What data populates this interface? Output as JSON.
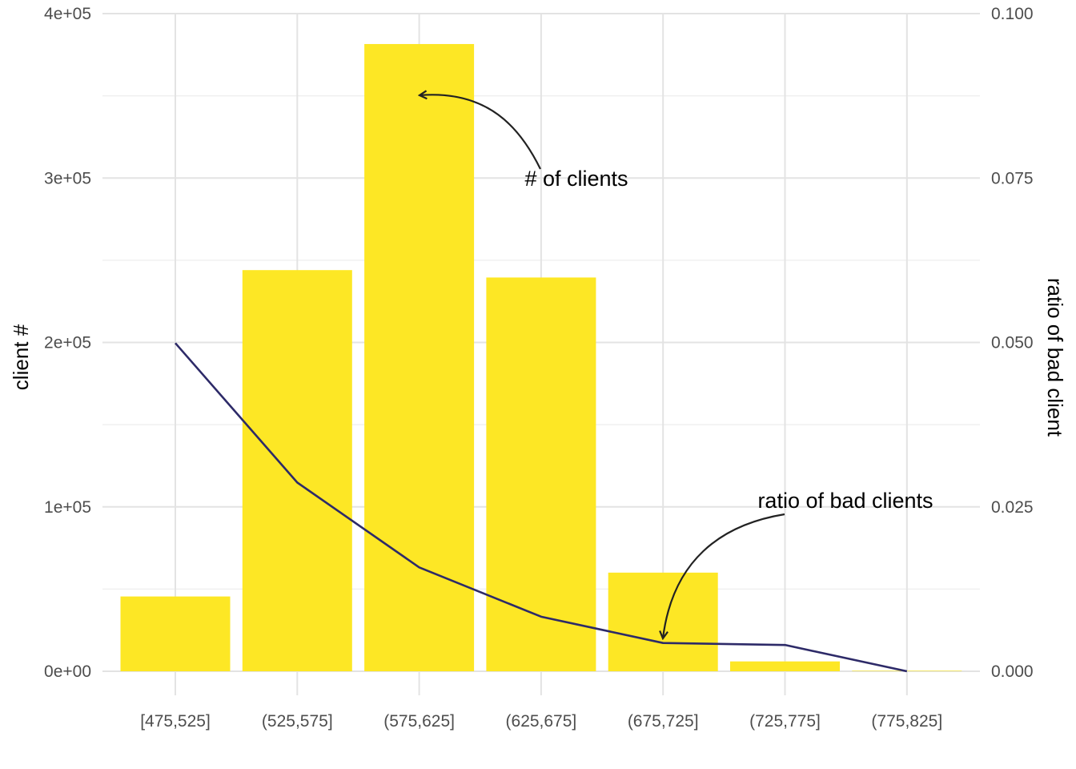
{
  "chart_data": {
    "type": "bar",
    "categories": [
      "[475,525]",
      "(525,575]",
      "(575,625]",
      "(625,675]",
      "(675,725]",
      "(725,775]",
      "(775,825]"
    ],
    "series": [
      {
        "values": [
          45500,
          244000,
          381500,
          239500,
          60000,
          6000,
          300
        ],
        "color": "#FDE725",
        "axis": "left"
      },
      {
        "type": "line",
        "values": [
          0.0499,
          0.0287,
          0.0158,
          0.0083,
          0.0043,
          0.004,
          0.0
        ],
        "color": "#2D2A68",
        "axis": "right"
      }
    ],
    "ylabel": "client #",
    "ylabel_right": "ratio of bad client",
    "ylim": [
      0,
      400000
    ],
    "ylim_right": [
      0,
      0.1
    ],
    "yticks_left": [
      "0e+00",
      "1e+05",
      "2e+05",
      "3e+05",
      "4e+05"
    ],
    "yticks_right": [
      "0.000",
      "0.025",
      "0.050",
      "0.075",
      "0.100"
    ],
    "annotations": [
      {
        "text": "# of clients"
      },
      {
        "text": "ratio of bad clients"
      }
    ],
    "grid": true
  }
}
